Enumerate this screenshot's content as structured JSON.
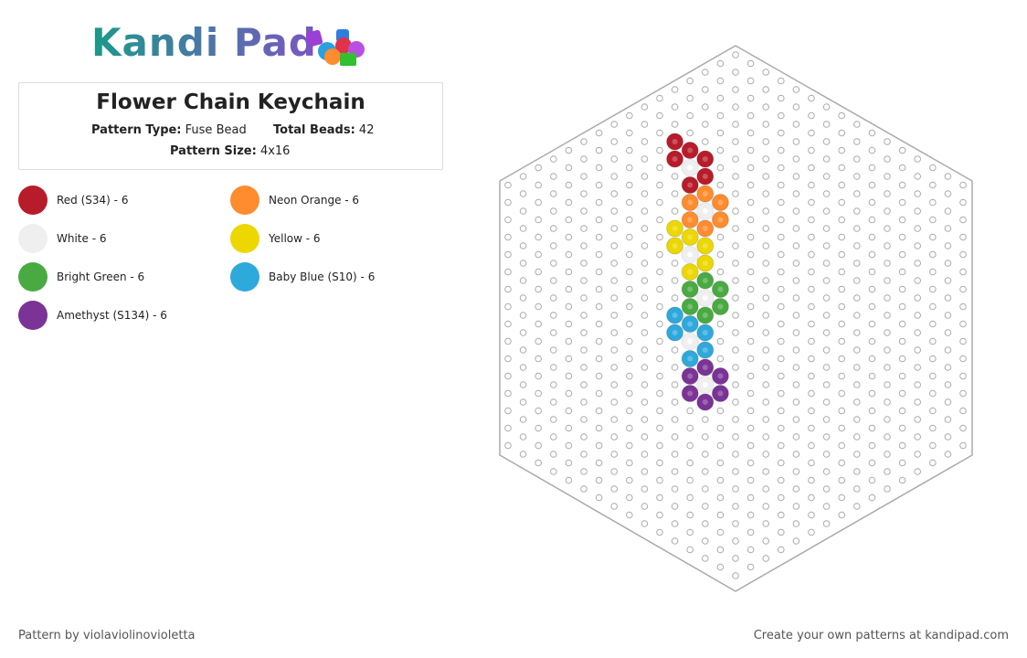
{
  "header": {
    "logo": "Kandi Pad"
  },
  "pattern": {
    "title": "Flower Chain Keychain",
    "type_label": "Pattern Type:",
    "type_value": "Fuse Bead",
    "beads_label": "Total Beads:",
    "beads_value": "42",
    "size_label": "Pattern Size:",
    "size_value": "4x16"
  },
  "legend": [
    {
      "name": "Red (S34) - 6",
      "color": "#b81c2a"
    },
    {
      "name": "Neon Orange - 6",
      "color": "#ff8c2e"
    },
    {
      "name": "White - 6",
      "color": "#efefef"
    },
    {
      "name": "Yellow - 6",
      "color": "#ecd800"
    },
    {
      "name": "Bright Green - 6",
      "color": "#4aaa42"
    },
    {
      "name": "Baby Blue (S10) - 6",
      "color": "#2ea9dc"
    },
    {
      "name": "Amethyst (S134) - 6",
      "color": "#7b3396"
    }
  ],
  "footer": {
    "author": "Pattern by violaviolinovioletta",
    "promo": "Create your own patterns at kandipad.com"
  }
}
